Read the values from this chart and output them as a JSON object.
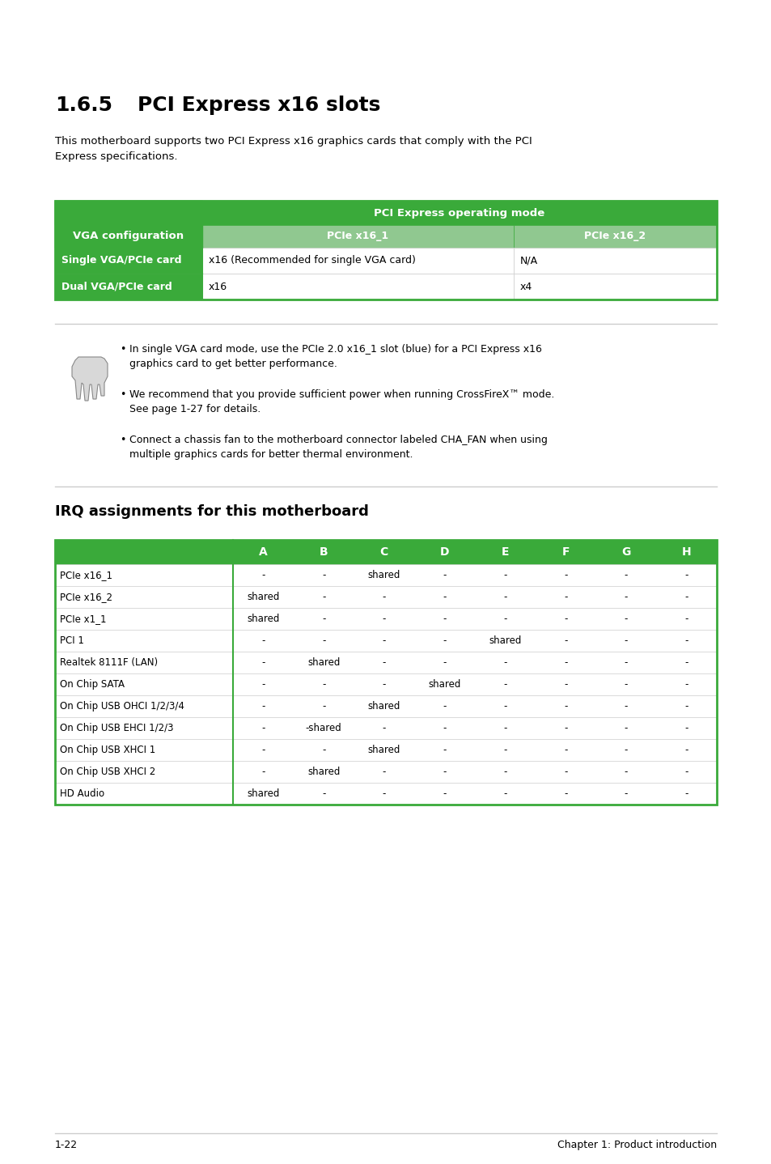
{
  "title_num": "1.6.5",
  "title_text": "PCI Express x16 slots",
  "intro_text": "This motherboard supports two PCI Express x16 graphics cards that comply with the PCI\nExpress specifications.",
  "green_color": "#3aaa3a",
  "light_green_color": "#90c890",
  "table1_header_col0": "VGA configuration",
  "table1_header_span": "PCI Express operating mode",
  "table1_sub_col1": "PCIe x16_1",
  "table1_sub_col2": "PCIe x16_2",
  "table1_rows": [
    [
      "Single VGA/PCIe card",
      "x16 (Recommended for single VGA card)",
      "N/A"
    ],
    [
      "Dual VGA/PCIe card",
      "x16",
      "x4"
    ]
  ],
  "note_bullets": [
    "In single VGA card mode, use the PCIe 2.0 x16_1 slot (blue) for a PCI Express x16\ngraphics card to get better performance.",
    "We recommend that you provide sufficient power when running CrossFireX™ mode.\nSee page 1-27 for details.",
    "Connect a chassis fan to the motherboard connector labeled CHA_FAN when using\nmultiple graphics cards for better thermal environment."
  ],
  "irq_title": "IRQ assignments for this motherboard",
  "irq_columns": [
    "",
    "A",
    "B",
    "C",
    "D",
    "E",
    "F",
    "G",
    "H"
  ],
  "irq_rows": [
    [
      "PCIe x16_1",
      "-",
      "-",
      "shared",
      "-",
      "-",
      "-",
      "-",
      "-"
    ],
    [
      "PCIe x16_2",
      "shared",
      "-",
      "-",
      "-",
      "-",
      "-",
      "-",
      "-"
    ],
    [
      "PCIe x1_1",
      "shared",
      "-",
      "-",
      "-",
      "-",
      "-",
      "-",
      "-"
    ],
    [
      "PCI 1",
      "-",
      "-",
      "-",
      "-",
      "shared",
      "-",
      "-",
      "-"
    ],
    [
      "Realtek 8111F (LAN)",
      "-",
      "shared",
      "-",
      "-",
      "-",
      "-",
      "-",
      "-"
    ],
    [
      "On Chip SATA",
      "-",
      "-",
      "-",
      "shared",
      "-",
      "-",
      "-",
      "-"
    ],
    [
      "On Chip USB OHCI 1/2/3/4",
      "-",
      "-",
      "shared",
      "-",
      "-",
      "-",
      "-",
      "-"
    ],
    [
      "On Chip USB EHCI 1/2/3",
      "-",
      "-shared",
      "-",
      "-",
      "-",
      "-",
      "-",
      "-"
    ],
    [
      "On Chip USB XHCI 1",
      "-",
      "-",
      "shared",
      "-",
      "-",
      "-",
      "-",
      "-"
    ],
    [
      "On Chip USB XHCI 2",
      "-",
      "shared",
      "-",
      "-",
      "-",
      "-",
      "-",
      "-"
    ],
    [
      "HD Audio",
      "shared",
      "-",
      "-",
      "-",
      "-",
      "-",
      "-",
      "-"
    ]
  ],
  "footer_left": "1-22",
  "footer_right": "Chapter 1: Product introduction",
  "bg_color": "#ffffff",
  "line_color": "#cccccc"
}
